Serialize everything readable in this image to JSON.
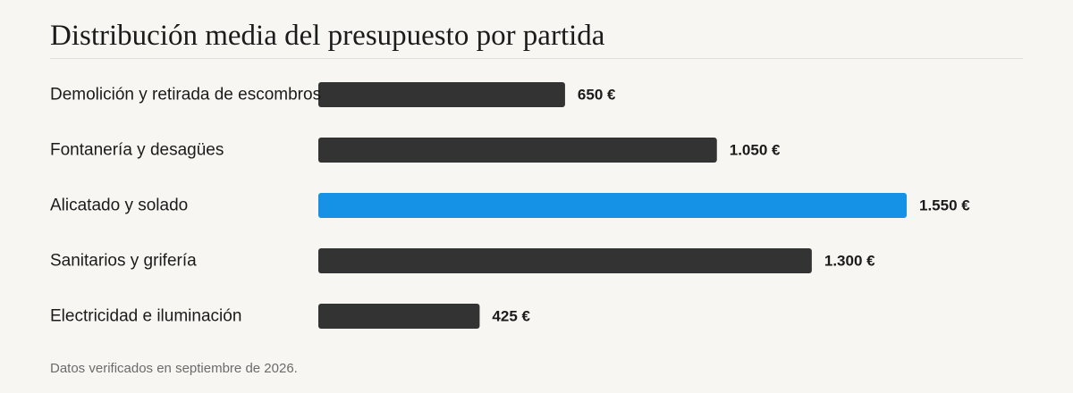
{
  "chart_data": {
    "type": "bar",
    "orientation": "horizontal",
    "title": "Distribución media del presupuesto por partida",
    "categories": [
      "Demolición y retirada de escombros",
      "Fontanería y desagües",
      "Alicatado y solado",
      "Sanitarios y grifería",
      "Electricidad e iluminación"
    ],
    "values": [
      650,
      1050,
      1550,
      1300,
      425
    ],
    "value_labels": [
      "650 €",
      "1.050 €",
      "1.550 €",
      "1.300 €",
      "425 €"
    ],
    "highlight": "Alicatado y solado",
    "colors": {
      "bar": "#333333",
      "highlight": "#1592e6"
    },
    "grid": false,
    "legend": "none"
  },
  "footnote": "Datos verificados en septiembre de 2026."
}
